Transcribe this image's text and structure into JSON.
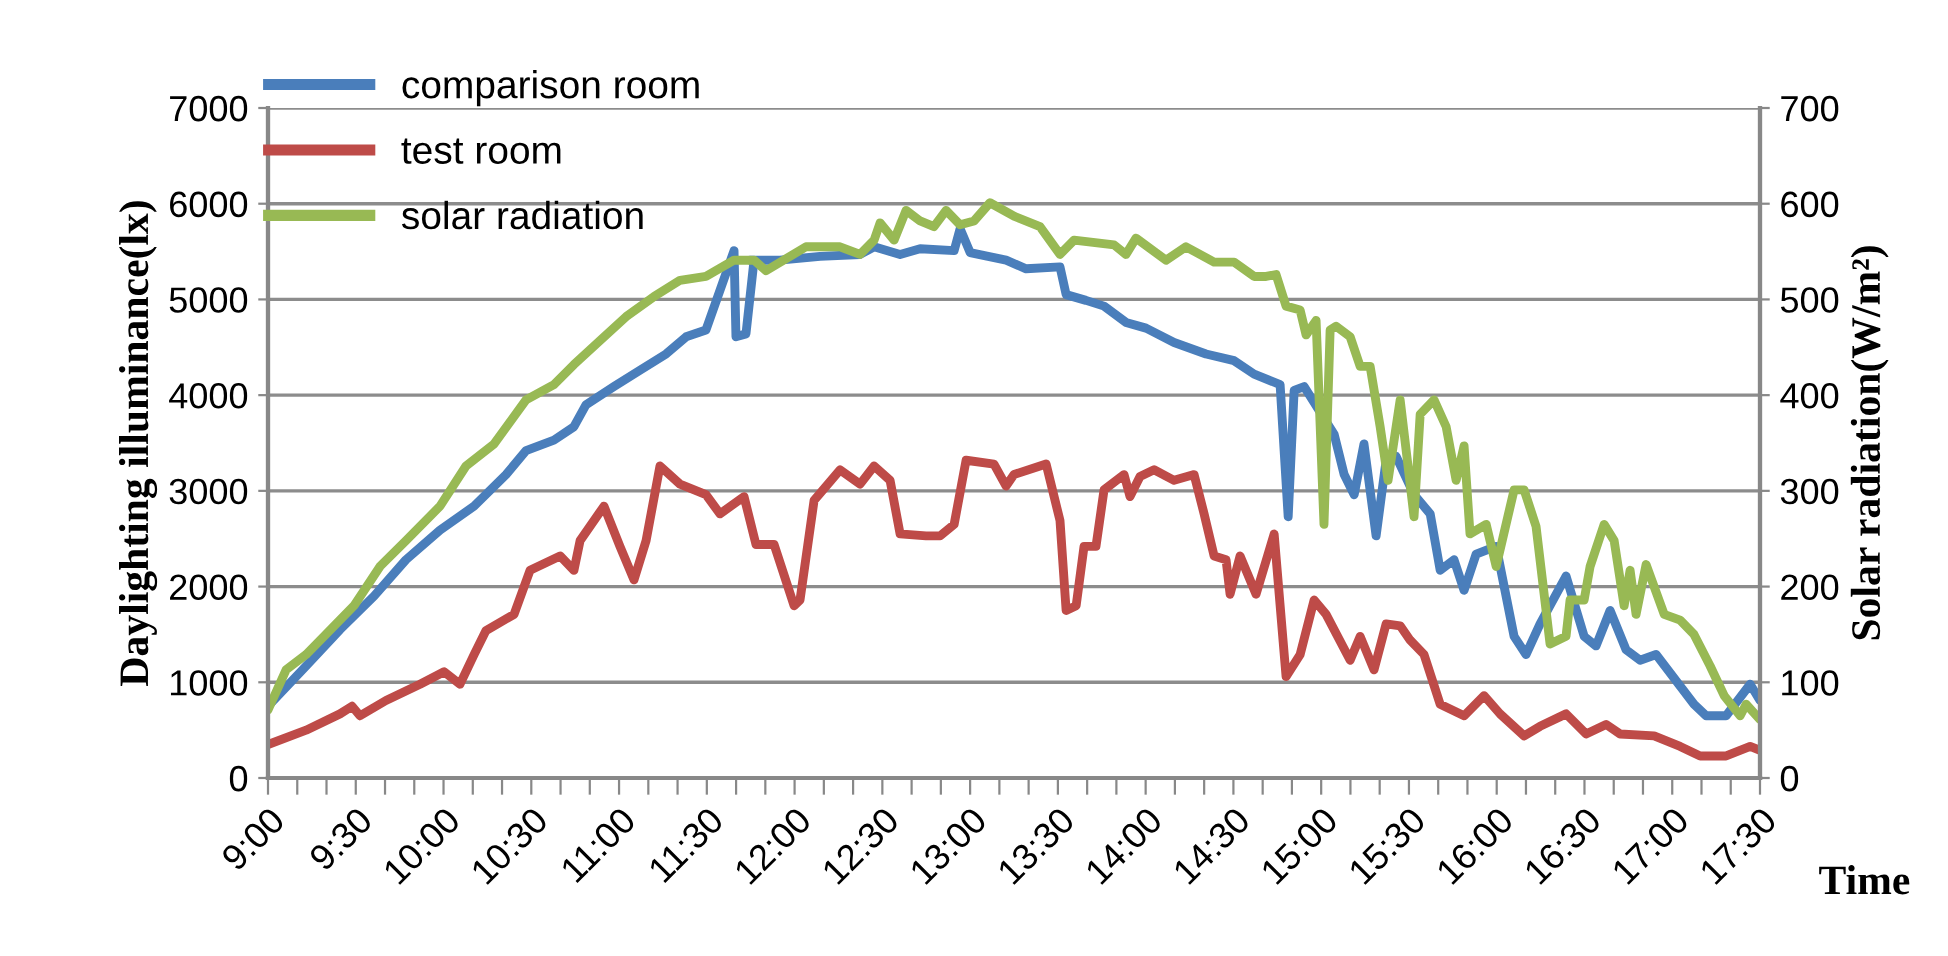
{
  "chart_data": {
    "type": "line",
    "xlabel": "Time",
    "ylabel": "Daylighting illuminance(lx)",
    "y2label": "Solar radiation(W/m²)",
    "xlim": [
      9,
      17.5
    ],
    "ylim": [
      0,
      7000
    ],
    "yticks": [
      0,
      1000,
      2000,
      3000,
      4000,
      5000,
      6000,
      7000
    ],
    "y2lim": [
      0,
      700
    ],
    "y2ticks": [
      0,
      100,
      200,
      300,
      400,
      500,
      600,
      700
    ],
    "xticks": [
      {
        "value": 9,
        "label": "9:00"
      },
      {
        "value": 9.1667,
        "label": null
      },
      {
        "value": 9.3333,
        "label": null
      },
      {
        "value": 9.5,
        "label": "9:30"
      },
      {
        "value": 9.6667,
        "label": null
      },
      {
        "value": 9.8333,
        "label": null
      },
      {
        "value": 10,
        "label": "10:00"
      },
      {
        "value": 10.1667,
        "label": null
      },
      {
        "value": 10.3333,
        "label": null
      },
      {
        "value": 10.5,
        "label": "10:30"
      },
      {
        "value": 10.6667,
        "label": null
      },
      {
        "value": 10.8333,
        "label": null
      },
      {
        "value": 11,
        "label": "11:00"
      },
      {
        "value": 11.1667,
        "label": null
      },
      {
        "value": 11.3333,
        "label": null
      },
      {
        "value": 11.5,
        "label": "11:30"
      },
      {
        "value": 11.6667,
        "label": null
      },
      {
        "value": 11.8333,
        "label": null
      },
      {
        "value": 12,
        "label": "12:00"
      },
      {
        "value": 12.1667,
        "label": null
      },
      {
        "value": 12.3333,
        "label": null
      },
      {
        "value": 12.5,
        "label": "12:30"
      },
      {
        "value": 12.6667,
        "label": null
      },
      {
        "value": 12.8333,
        "label": null
      },
      {
        "value": 13,
        "label": "13:00"
      },
      {
        "value": 13.1667,
        "label": null
      },
      {
        "value": 13.3333,
        "label": null
      },
      {
        "value": 13.5,
        "label": "13:30"
      },
      {
        "value": 13.6667,
        "label": null
      },
      {
        "value": 13.8333,
        "label": null
      },
      {
        "value": 14,
        "label": "14:00"
      },
      {
        "value": 14.1667,
        "label": null
      },
      {
        "value": 14.3333,
        "label": null
      },
      {
        "value": 14.5,
        "label": "14:30"
      },
      {
        "value": 14.6667,
        "label": null
      },
      {
        "value": 14.8333,
        "label": null
      },
      {
        "value": 15,
        "label": "15:00"
      },
      {
        "value": 15.1667,
        "label": null
      },
      {
        "value": 15.3333,
        "label": null
      },
      {
        "value": 15.5,
        "label": "15:30"
      },
      {
        "value": 15.6667,
        "label": null
      },
      {
        "value": 15.8333,
        "label": null
      },
      {
        "value": 16,
        "label": "16:00"
      },
      {
        "value": 16.1667,
        "label": null
      },
      {
        "value": 16.3333,
        "label": null
      },
      {
        "value": 16.5,
        "label": "16:30"
      },
      {
        "value": 16.6667,
        "label": null
      },
      {
        "value": 16.8333,
        "label": null
      },
      {
        "value": 17,
        "label": "17:00"
      },
      {
        "value": 17.1667,
        "label": null
      },
      {
        "value": 17.3333,
        "label": null
      },
      {
        "value": 17.5,
        "label": "17:30"
      }
    ],
    "grid": "y",
    "legend": "top left",
    "marker": "none",
    "line_style": "solid",
    "series": [
      {
        "name": "comparison room",
        "color": "#4a7ebb",
        "x": [
          9.0,
          9.217,
          9.41,
          9.604,
          9.786,
          9.98,
          10.174,
          10.356,
          10.47,
          10.629,
          10.743,
          10.812,
          10.971,
          11.119,
          11.268,
          11.382,
          11.495,
          11.655,
          11.666,
          11.723,
          11.769,
          11.746,
          11.917,
          12.145,
          12.373,
          12.453,
          12.601,
          12.715,
          12.909,
          12.943,
          13.0,
          13.205,
          13.319,
          13.512,
          13.547,
          13.66,
          13.763,
          13.888,
          14.002,
          14.162,
          14.344,
          14.504,
          14.618,
          14.766,
          14.812,
          14.846,
          14.903,
          15.074,
          15.131,
          15.188,
          15.244,
          15.313,
          15.37,
          15.427,
          15.529,
          15.621,
          15.678,
          15.757,
          15.814,
          15.883,
          15.997,
          16.099,
          16.167,
          16.247,
          16.395,
          16.498,
          16.566,
          16.646,
          16.737,
          16.817,
          16.908,
          17.124,
          17.193,
          17.307,
          17.444,
          17.5
        ],
        "values": [
          750,
          1170,
          1550,
          1900,
          2280,
          2590,
          2840,
          3170,
          3420,
          3530,
          3670,
          3900,
          4090,
          4260,
          4430,
          4610,
          4680,
          5510,
          4610,
          4640,
          5410,
          5410,
          5410,
          5450,
          5470,
          5550,
          5470,
          5530,
          5510,
          5740,
          5490,
          5410,
          5320,
          5340,
          5050,
          4990,
          4930,
          4760,
          4700,
          4550,
          4430,
          4360,
          4220,
          4110,
          2730,
          4050,
          4090,
          3590,
          3170,
          2960,
          3490,
          2530,
          3320,
          3360,
          2960,
          2760,
          2170,
          2280,
          1960,
          2340,
          2420,
          1480,
          1290,
          1610,
          2110,
          1480,
          1380,
          1750,
          1340,
          1230,
          1290,
          770,
          650,
          650,
          980,
          810
        ]
      },
      {
        "name": "test room",
        "color": "#be4b48",
        "x": [
          9.0,
          9.217,
          9.41,
          9.479,
          9.524,
          9.672,
          9.866,
          10.003,
          10.094,
          10.174,
          10.242,
          10.402,
          10.493,
          10.664,
          10.743,
          10.778,
          10.914,
          11.005,
          11.085,
          11.154,
          11.233,
          11.347,
          11.495,
          11.575,
          11.712,
          11.78,
          11.883,
          11.997,
          12.031,
          12.111,
          12.259,
          12.373,
          12.453,
          12.544,
          12.601,
          12.749,
          12.829,
          12.909,
          12.977,
          13.136,
          13.205,
          13.25,
          13.433,
          13.512,
          13.547,
          13.604,
          13.649,
          13.717,
          13.763,
          13.877,
          13.911,
          13.968,
          14.048,
          14.162,
          14.276,
          14.333,
          14.39,
          14.458,
          14.481,
          14.538,
          14.629,
          14.732,
          14.8,
          14.88,
          14.96,
          15.028,
          15.165,
          15.222,
          15.301,
          15.37,
          15.45,
          15.507,
          15.586,
          15.678,
          15.814,
          15.928,
          16.019,
          16.156,
          16.247,
          16.395,
          16.509,
          16.623,
          16.703,
          16.897,
          17.045,
          17.159,
          17.307,
          17.444,
          17.5
        ],
        "values": [
          350,
          500,
          670,
          750,
          650,
          810,
          980,
          1110,
          980,
          1290,
          1540,
          1710,
          2170,
          2320,
          2170,
          2480,
          2840,
          2420,
          2070,
          2480,
          3260,
          3070,
          2960,
          2760,
          2940,
          2440,
          2440,
          1800,
          1860,
          2900,
          3220,
          3070,
          3260,
          3110,
          2550,
          2530,
          2530,
          2650,
          3320,
          3280,
          3050,
          3170,
          3280,
          2690,
          1750,
          1800,
          2420,
          2420,
          3010,
          3170,
          2940,
          3150,
          3220,
          3110,
          3170,
          2760,
          2320,
          2280,
          1920,
          2320,
          1920,
          2550,
          1060,
          1290,
          1860,
          1710,
          1230,
          1480,
          1130,
          1610,
          1590,
          1440,
          1290,
          770,
          650,
          860,
          670,
          440,
          540,
          670,
          460,
          560,
          460,
          440,
          330,
          230,
          230,
          330,
          290
        ]
      },
      {
        "name": "solar radiation",
        "color": "#98b954",
        "axis": "y2",
        "x": [
          9.0,
          9.103,
          9.217,
          9.33,
          9.49,
          9.638,
          9.786,
          9.98,
          10.128,
          10.288,
          10.47,
          10.629,
          10.743,
          10.892,
          11.04,
          11.199,
          11.347,
          11.495,
          11.655,
          11.769,
          11.837,
          12.065,
          12.259,
          12.373,
          12.453,
          12.487,
          12.567,
          12.635,
          12.715,
          12.794,
          12.863,
          12.943,
          13.022,
          13.113,
          13.25,
          13.398,
          13.512,
          13.592,
          13.82,
          13.888,
          13.945,
          14.116,
          14.23,
          14.39,
          14.504,
          14.618,
          14.686,
          14.743,
          14.8,
          14.88,
          14.914,
          14.971,
          15.016,
          15.051,
          15.085,
          15.165,
          15.222,
          15.279,
          15.336,
          15.381,
          15.45,
          15.529,
          15.564,
          15.643,
          15.712,
          15.769,
          15.814,
          15.848,
          15.94,
          15.997,
          16.099,
          16.156,
          16.224,
          16.304,
          16.395,
          16.418,
          16.498,
          16.532,
          16.612,
          16.669,
          16.726,
          16.76,
          16.794,
          16.851,
          16.954,
          17.045,
          17.124,
          17.216,
          17.296,
          17.387,
          17.421,
          17.5
        ],
        "values": [
          71,
          113,
          129,
          150,
          180,
          221,
          248,
          284,
          326,
          349,
          395,
          411,
          432,
          457,
          482,
          503,
          520,
          524,
          541,
          541,
          530,
          555,
          555,
          547,
          562,
          580,
          562,
          593,
          582,
          576,
          593,
          578,
          582,
          601,
          587,
          576,
          547,
          562,
          557,
          547,
          564,
          541,
          555,
          539,
          539,
          524,
          524,
          526,
          493,
          489,
          463,
          478,
          265,
          468,
          472,
          461,
          430,
          430,
          367,
          311,
          395,
          273,
          380,
          395,
          367,
          311,
          347,
          255,
          265,
          221,
          301,
          301,
          263,
          140,
          148,
          186,
          186,
          221,
          265,
          248,
          180,
          217,
          171,
          223,
          171,
          165,
          150,
          117,
          86,
          65,
          77,
          61
        ]
      }
    ]
  }
}
